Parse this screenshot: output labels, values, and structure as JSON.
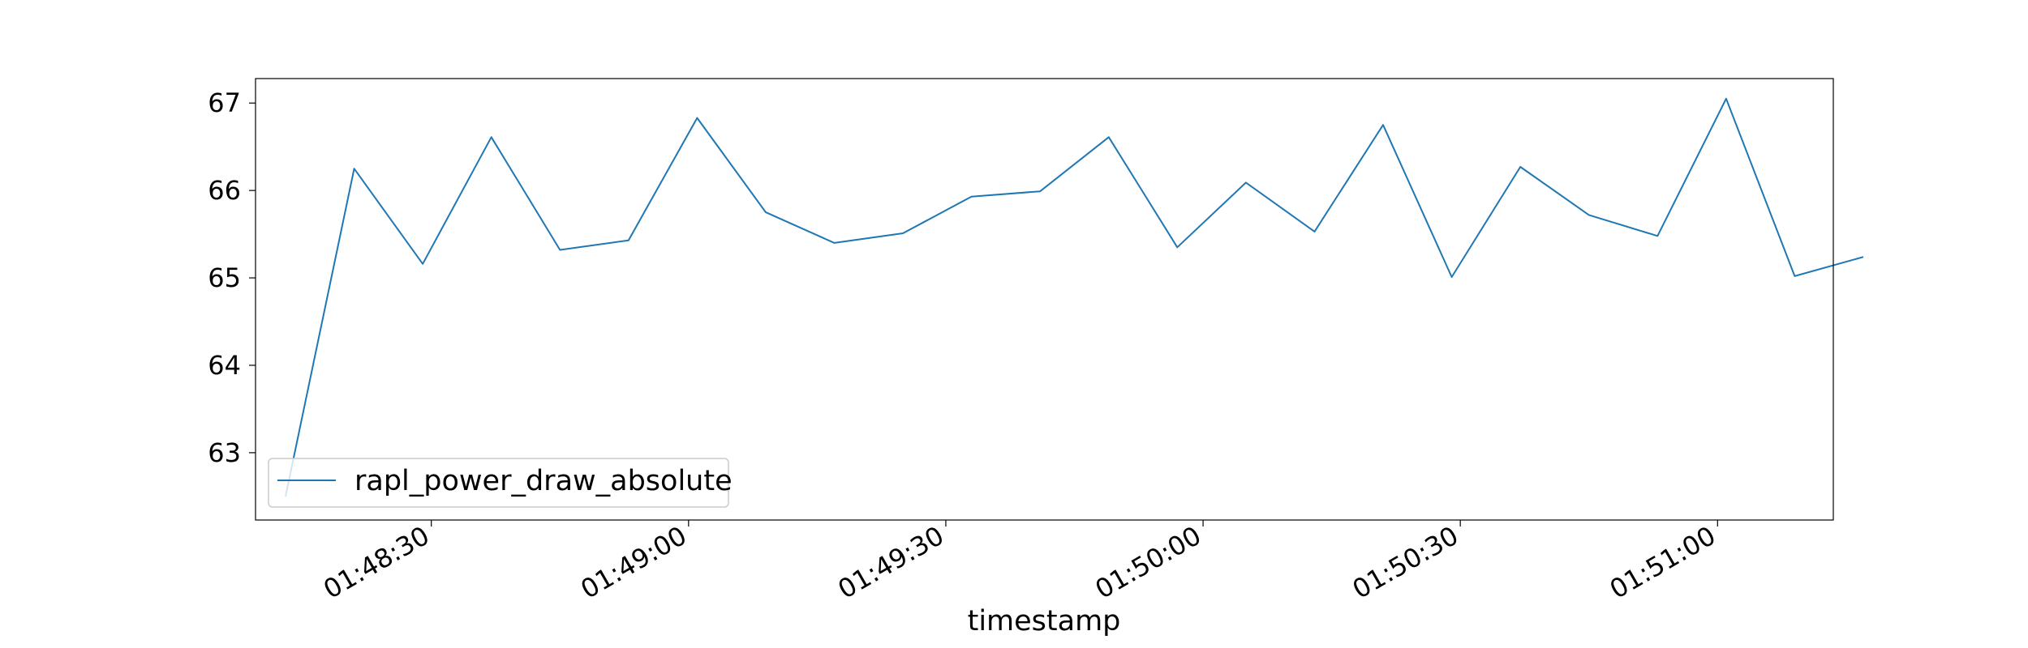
{
  "chart_data": {
    "type": "line",
    "title": "",
    "xlabel": "timestamp",
    "ylabel": "",
    "x_format": "HH:MM:SS",
    "x": [
      "01:48:13",
      "01:48:21",
      "01:48:29",
      "01:48:37",
      "01:48:45",
      "01:48:53",
      "01:49:01",
      "01:49:09",
      "01:49:17",
      "01:49:25",
      "01:49:33",
      "01:49:41",
      "01:49:49",
      "01:49:57",
      "01:50:05",
      "01:50:13",
      "01:50:21",
      "01:50:29",
      "01:50:37",
      "01:50:45",
      "01:50:53",
      "01:51:01",
      "01:51:09",
      "01:51:17"
    ],
    "series": [
      {
        "name": "rapl_power_draw_absolute",
        "color": "#1f77b4",
        "values": [
          62.5,
          66.25,
          65.16,
          66.61,
          65.32,
          65.43,
          66.83,
          65.75,
          65.4,
          65.51,
          65.93,
          65.99,
          66.61,
          65.35,
          66.09,
          65.53,
          66.75,
          65.01,
          66.27,
          65.72,
          65.48,
          67.05,
          65.02,
          65.24
        ]
      }
    ],
    "xlim": [
      "01:48:09.5",
      "01:51:13.5"
    ],
    "ylim": [
      62.23,
      67.28
    ],
    "xticks": [
      "01:48:30",
      "01:49:00",
      "01:49:30",
      "01:50:00",
      "01:50:30",
      "01:51:00"
    ],
    "yticks": [
      63,
      64,
      65,
      66,
      67
    ],
    "legend": {
      "position": "lower-left",
      "entries": [
        "rapl_power_draw_absolute"
      ]
    },
    "grid": false
  }
}
